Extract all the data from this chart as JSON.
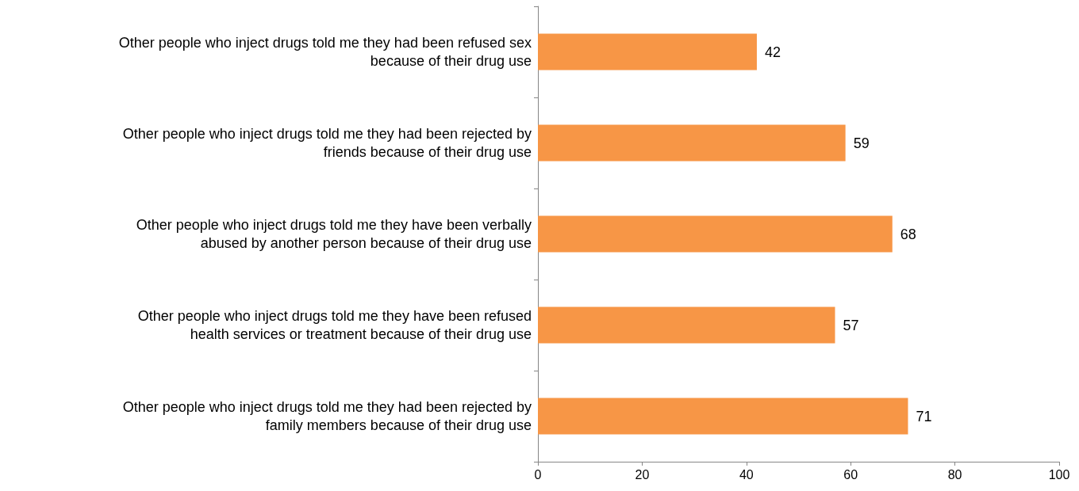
{
  "chart_data": {
    "type": "bar",
    "orientation": "horizontal",
    "categories": [
      "Other people who inject drugs told me they had been refused sex\nbecause of their drug use",
      "Other people who inject drugs told me they had been rejected by\nfriends because of their drug use",
      "Other people who inject drugs told me they have been verbally\nabused by another person because of their drug use",
      "Other people who inject drugs told me they have been refused\nhealth services or treatment because of their drug use",
      "Other people who inject drugs told me they had been rejected by\nfamily members because of their drug use"
    ],
    "values": [
      42,
      59,
      68,
      57,
      71
    ],
    "color": "#f79646",
    "xlim": [
      0,
      100
    ],
    "xticks": [
      0,
      20,
      40,
      60,
      80,
      100
    ],
    "data_labels": true,
    "grid": false
  }
}
